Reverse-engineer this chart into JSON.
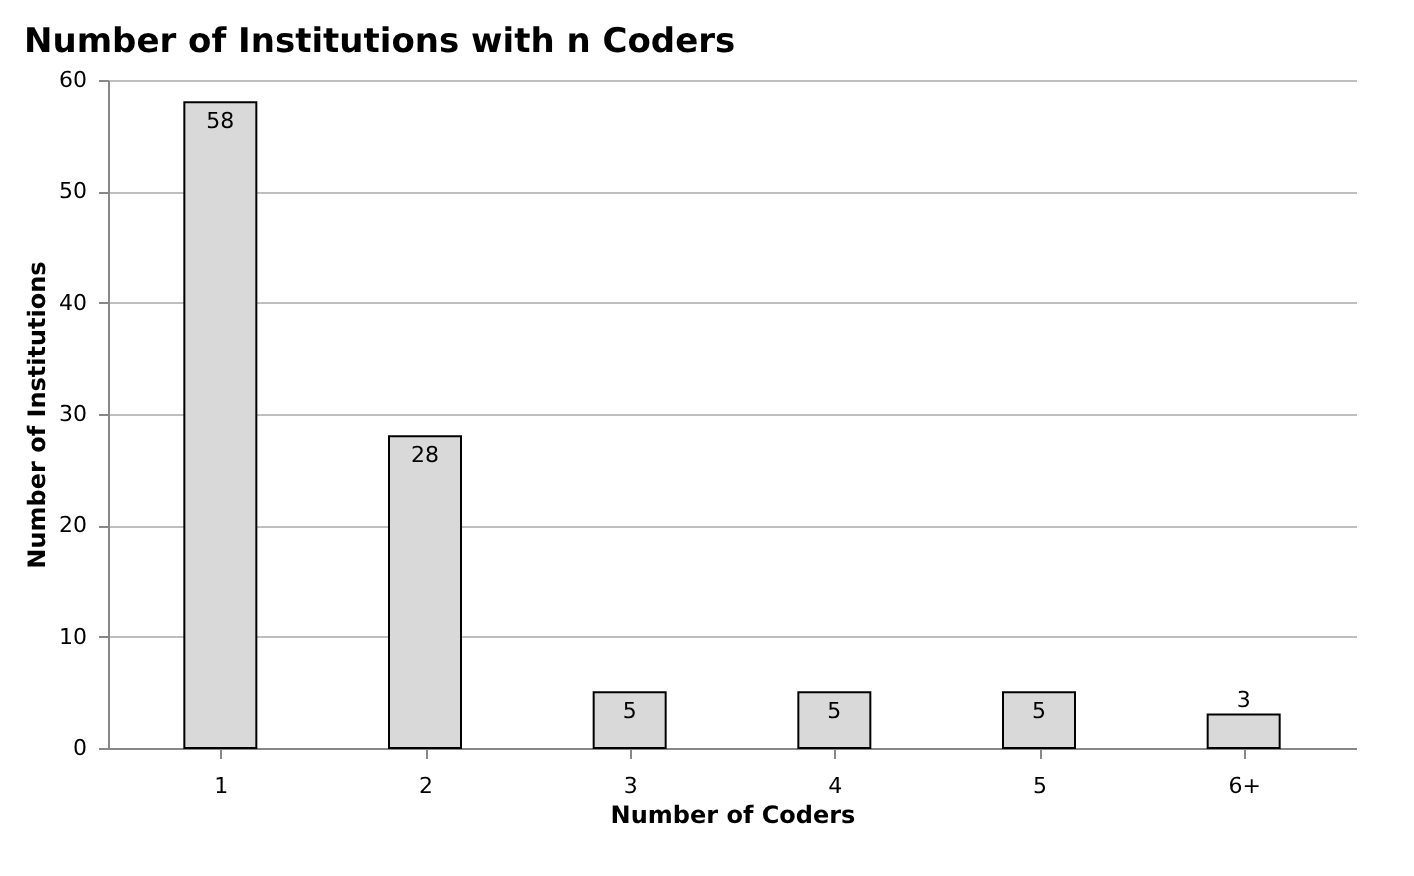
{
  "chart_data": {
    "type": "bar",
    "title": "Number of Institutions with n Coders",
    "xlabel": "Number of Coders",
    "ylabel": "Number of Institutions",
    "categories": [
      "1",
      "2",
      "3",
      "4",
      "5",
      "6+"
    ],
    "values": [
      58,
      28,
      5,
      5,
      5,
      3
    ],
    "color": "#d9d9d9",
    "ylim": [
      0,
      60
    ],
    "yticks": [
      0,
      10,
      20,
      30,
      40,
      50,
      60
    ],
    "grid": "y",
    "data_labels": true
  }
}
